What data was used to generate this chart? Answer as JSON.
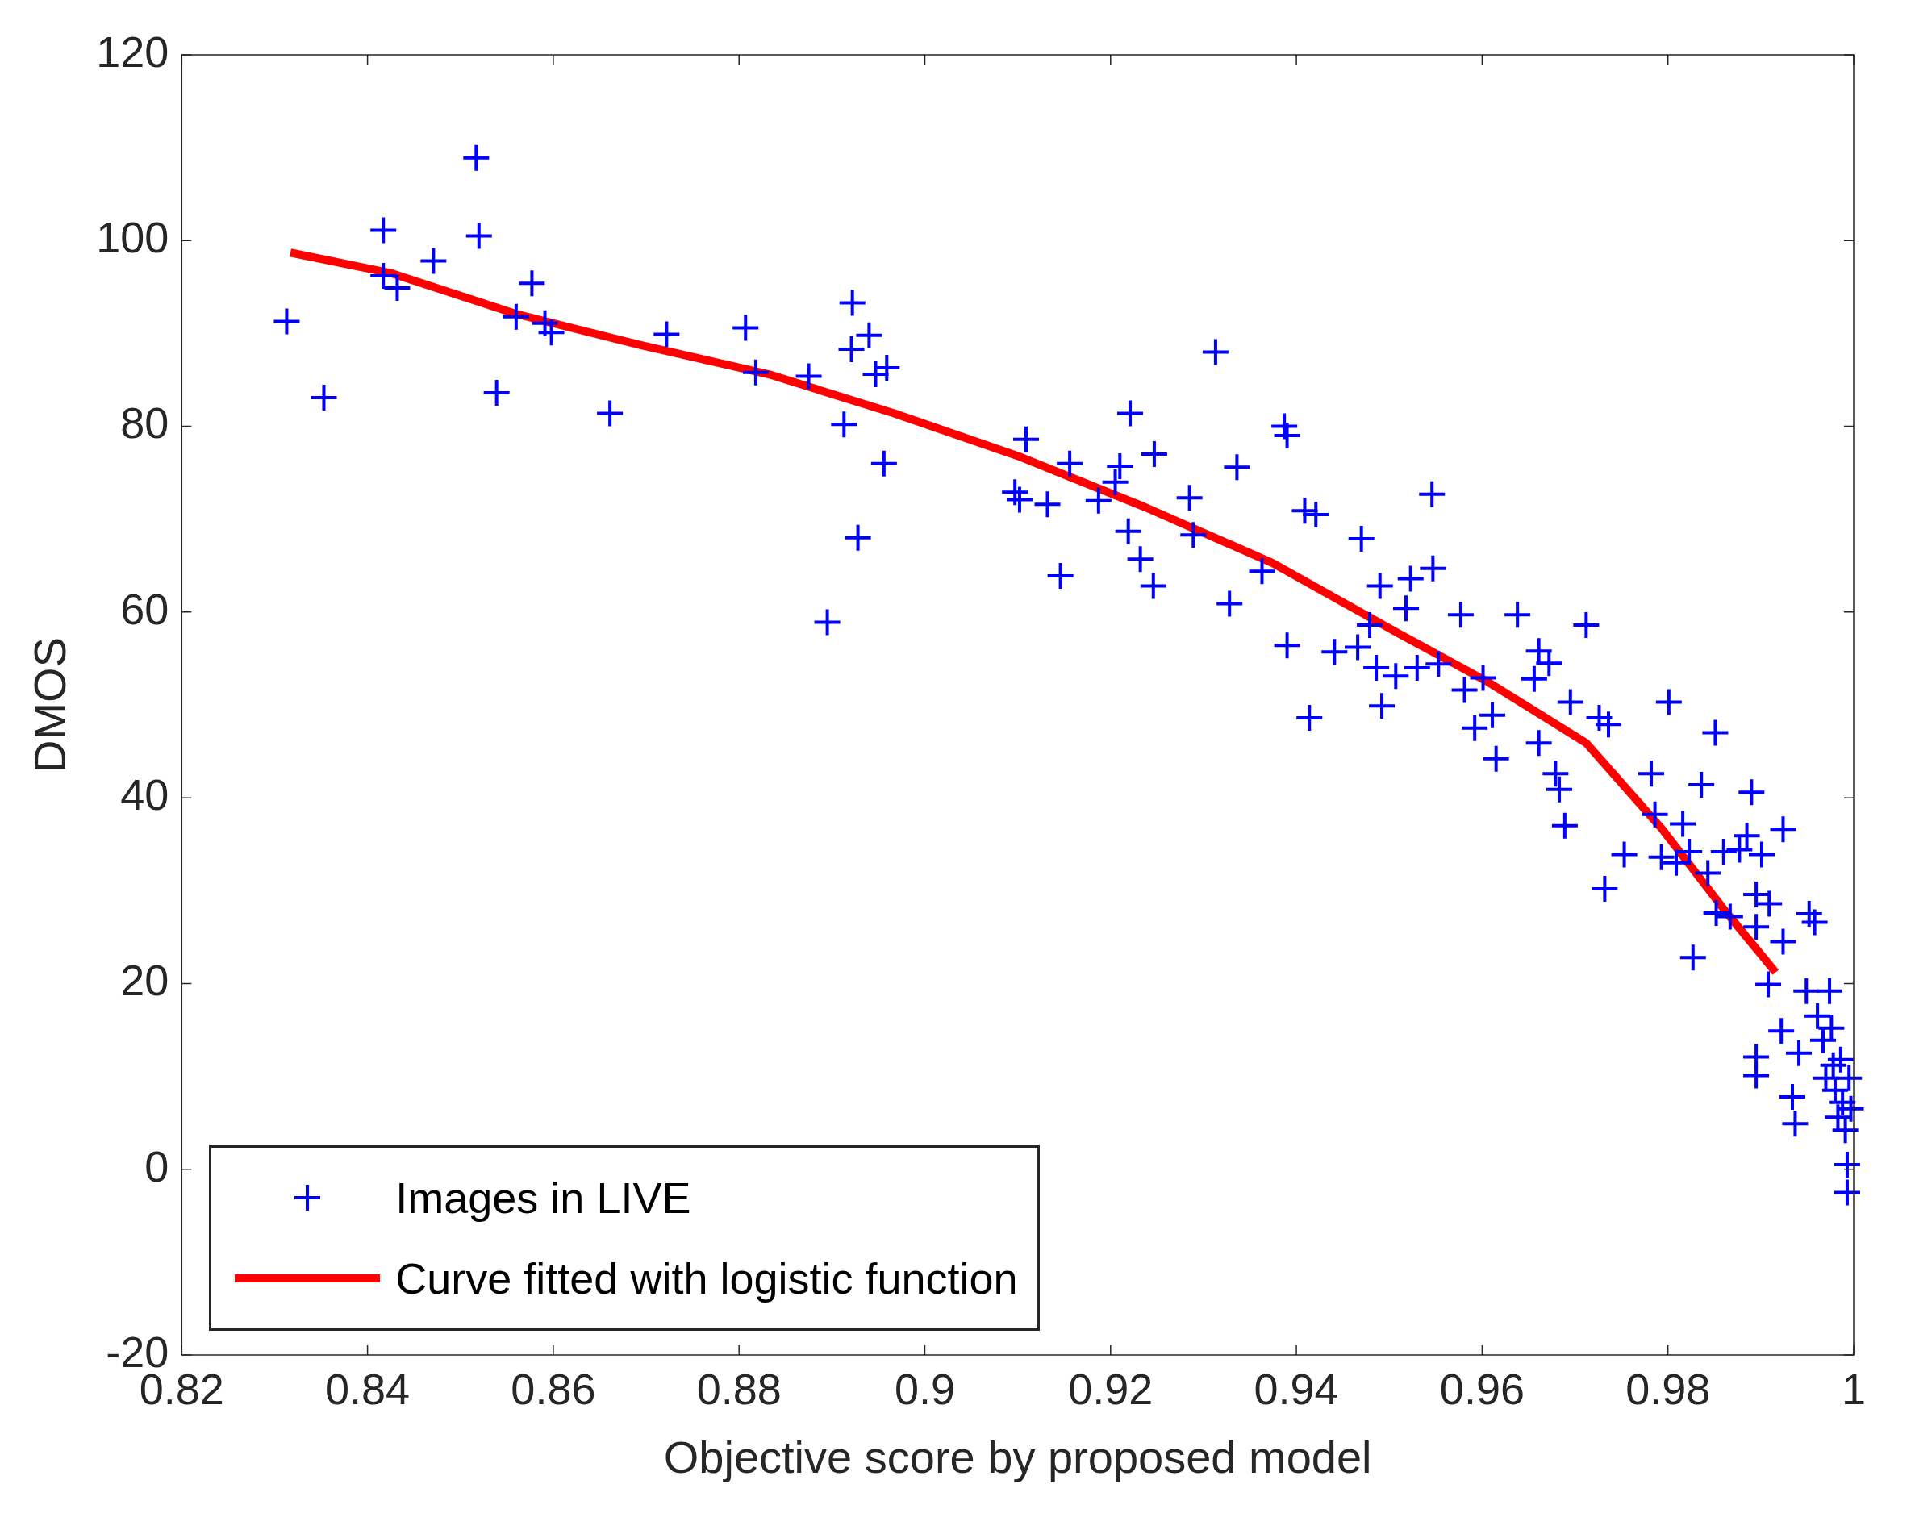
{
  "chart_data": {
    "type": "scatter",
    "xlabel": "Objective score by proposed model",
    "ylabel": "DMOS",
    "xlim": [
      0.82,
      1
    ],
    "xticks": [
      0.82,
      0.84,
      0.86,
      0.88,
      0.9,
      0.92,
      0.94,
      0.96,
      0.98,
      1
    ],
    "ylim": [
      -20,
      120
    ],
    "yticks": [
      -20,
      0,
      20,
      40,
      60,
      80,
      100,
      120
    ],
    "grid": false,
    "legend": "bottom left",
    "series": [
      {
        "name": "Images in LIVE",
        "type": "scatter",
        "color": "#0000ff",
        "marker": "cross",
        "x": [
          0.8313,
          0.8353,
          0.8417,
          0.8417,
          0.8432,
          0.8471,
          0.8517,
          0.852,
          0.8539,
          0.856,
          0.8577,
          0.8591,
          0.8598,
          0.8661,
          0.8722,
          0.8807,
          0.8818,
          0.8875,
          0.8895,
          0.8913,
          0.8922,
          0.8921,
          0.8928,
          0.894,
          0.8947,
          0.8959,
          0.8956,
          0.9097,
          0.9102,
          0.9109,
          0.9132,
          0.9146,
          0.9156,
          0.9187,
          0.9205,
          0.921,
          0.9221,
          0.9219,
          0.9232,
          0.9246,
          0.9247,
          0.9285,
          0.9289,
          0.9313,
          0.9328,
          0.9336,
          0.9363,
          0.9387,
          0.939,
          0.939,
          0.9409,
          0.9414,
          0.9421,
          0.9441,
          0.9466,
          0.947,
          0.9479,
          0.9486,
          0.9492,
          0.949,
          0.9507,
          0.9518,
          0.9523,
          0.953,
          0.9546,
          0.9547,
          0.9553,
          0.9577,
          0.9581,
          0.9592,
          0.9601,
          0.9611,
          0.9615,
          0.9638,
          0.9656,
          0.9661,
          0.9661,
          0.9672,
          0.9679,
          0.9683,
          0.9689,
          0.9695,
          0.9712,
          0.9726,
          0.9732,
          0.9736,
          0.9753,
          0.9782,
          0.9786,
          0.9793,
          0.9801,
          0.9809,
          0.9816,
          0.9823,
          0.9827,
          0.9836,
          0.9843,
          0.9852,
          0.9851,
          0.986,
          0.9867,
          0.9877,
          0.9885,
          0.989,
          0.9901,
          0.9895,
          0.9895,
          0.9909,
          0.9908,
          0.9895,
          0.9895,
          0.9924,
          0.9924,
          0.9922,
          0.9934,
          0.9937,
          0.9941,
          0.9949,
          0.9952,
          0.9958,
          0.9961,
          0.9967,
          0.997,
          0.9974,
          0.9976,
          0.9978,
          0.998,
          0.9983,
          0.9986,
          0.9988,
          0.9991,
          0.9993,
          0.9993,
          0.9995,
          0.9997
        ],
        "values": [
          91.3,
          83.1,
          101.1,
          96.2,
          94.9,
          97.8,
          108.9,
          100.5,
          83.6,
          91.8,
          95.4,
          91.1,
          90.1,
          81.4,
          89.9,
          90.6,
          85.8,
          85.4,
          58.9,
          80.2,
          93.3,
          88.3,
          68.0,
          89.8,
          85.6,
          86.3,
          76.0,
          72.9,
          72.1,
          78.6,
          71.6,
          63.9,
          76.0,
          72.0,
          74.0,
          75.7,
          81.4,
          68.7,
          65.7,
          62.8,
          77.0,
          72.3,
          68.3,
          88.0,
          60.9,
          75.6,
          64.4,
          80.0,
          79.0,
          56.4,
          70.9,
          48.6,
          70.5,
          55.7,
          56.2,
          67.9,
          58.6,
          54.0,
          49.9,
          62.8,
          53.1,
          60.4,
          63.6,
          54.0,
          72.7,
          64.7,
          54.4,
          59.7,
          51.6,
          47.5,
          52.9,
          48.9,
          44.2,
          59.7,
          52.8,
          55.8,
          45.9,
          54.5,
          42.6,
          40.9,
          37.0,
          50.3,
          58.6,
          48.6,
          30.2,
          47.9,
          33.9,
          42.6,
          38.2,
          33.6,
          50.3,
          33.0,
          37.2,
          34.2,
          22.8,
          41.4,
          31.9,
          27.6,
          47.0,
          34.2,
          27.2,
          34.4,
          35.9,
          40.6,
          33.9,
          29.6,
          26.1,
          28.6,
          19.9,
          12.1,
          10.1,
          36.6,
          24.5,
          14.9,
          7.8,
          4.9,
          12.5,
          19.2,
          27.5,
          26.6,
          16.5,
          13.9,
          9.8,
          19.2,
          15.2,
          11.2,
          8.5,
          5.6,
          11.8,
          7.2,
          4.2,
          0.5,
          -2.5,
          9.8,
          6.5
        ]
      },
      {
        "name": "Curve fitted with logistic function",
        "type": "line",
        "color": "#ff0000",
        "marker": "none",
        "line_style": "solid",
        "x": [
          0.8317,
          0.8425,
          0.856,
          0.8696,
          0.8832,
          0.8967,
          0.9103,
          0.9237,
          0.9374,
          0.951,
          0.9604,
          0.9712,
          0.9794,
          0.9861,
          0.9916
        ],
        "values": [
          98.7,
          96.5,
          92.1,
          88.7,
          85.6,
          81.4,
          76.7,
          71.3,
          65.3,
          57.7,
          52.6,
          45.9,
          36.6,
          27.9,
          21.2
        ]
      }
    ]
  }
}
